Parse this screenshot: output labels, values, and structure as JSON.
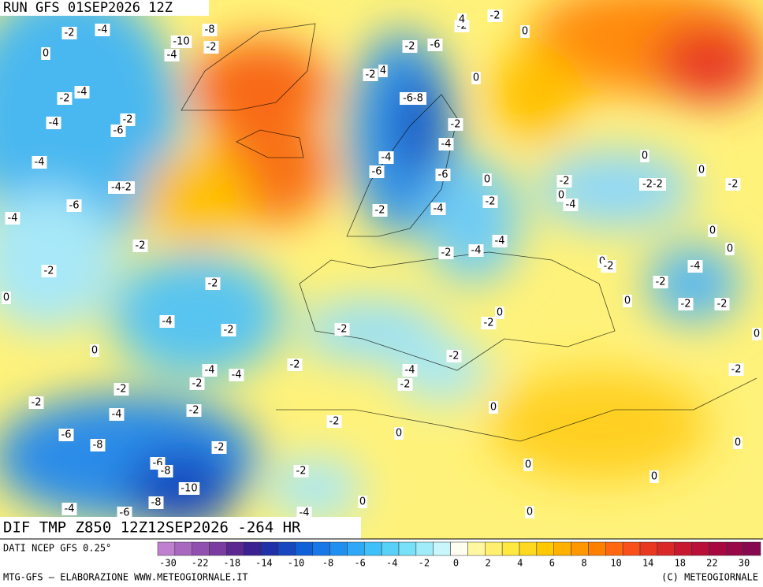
{
  "header": {
    "run": "RUN GFS 01SEP2026 12Z",
    "field": "DIF TMP Z850 12Z12SEP2026 -264 HR"
  },
  "footer": {
    "source": "DATI NCEP GFS 0.25°",
    "credit": "MTG-GFS — ELABORAZIONE WWW.METEOGIORNALE.IT",
    "copyright": "(C) METEOGIORNALE"
  },
  "colorbar": {
    "colors": [
      "#c080d0",
      "#a868c0",
      "#9050b0",
      "#7a3ca0",
      "#5a2890",
      "#3a2090",
      "#2030a8",
      "#1848c0",
      "#1060d8",
      "#1878e8",
      "#2090f0",
      "#30a8f8",
      "#40c0f8",
      "#58d0f8",
      "#78e0f8",
      "#a0ecf8",
      "#c8f6fa",
      "#fffef0",
      "#fff8a0",
      "#fff070",
      "#ffe840",
      "#ffd820",
      "#ffc800",
      "#ffb000",
      "#ff9800",
      "#ff8000",
      "#ff6810",
      "#f85018",
      "#e83820",
      "#d82828",
      "#c81830",
      "#b81038",
      "#a80840",
      "#980848",
      "#880850"
    ],
    "labels": [
      "-30",
      "-22",
      "-18",
      "-14",
      "-10",
      "-8",
      "-6",
      "-4",
      "-2",
      "0",
      "2",
      "4",
      "6",
      "8",
      "10",
      "14",
      "18",
      "22",
      "30"
    ]
  },
  "contour_labels": [
    "-2",
    "-4",
    "0",
    "-10",
    "-8",
    "-4",
    "-2",
    "-2",
    "-4",
    "-4",
    "-2",
    "-6",
    "-4",
    "-4-2",
    "-6",
    "-4",
    "-2",
    "-2",
    "0",
    "-2",
    "-4",
    "-2",
    "0",
    "-4",
    "-4",
    "-2",
    "-2",
    "-2",
    "-4",
    "-2",
    "-6",
    "-8",
    "-6",
    "-8",
    "-10",
    "-8",
    "-6",
    "-4",
    "-2",
    "-2",
    "-2",
    "-4",
    "0",
    "0",
    "-2",
    "-2",
    "-4",
    "-2",
    "-2",
    "-2",
    "0",
    "0",
    "0",
    "0",
    "0",
    "0",
    "-2",
    "0",
    "-2",
    "-2",
    "-2",
    "-4",
    "0",
    "0",
    "-2",
    "0",
    "0",
    "-2",
    "0",
    "-2-2",
    "0",
    "-2",
    "0",
    "-4",
    "0",
    "-2",
    "-4",
    "-4",
    "-2",
    "-4",
    "-6",
    "-4",
    "-2",
    "-6-8",
    "-4",
    "-6",
    "-2",
    "-2",
    "4",
    "-2",
    "-6",
    "-2",
    "-2",
    "0",
    "0",
    "4"
  ]
}
